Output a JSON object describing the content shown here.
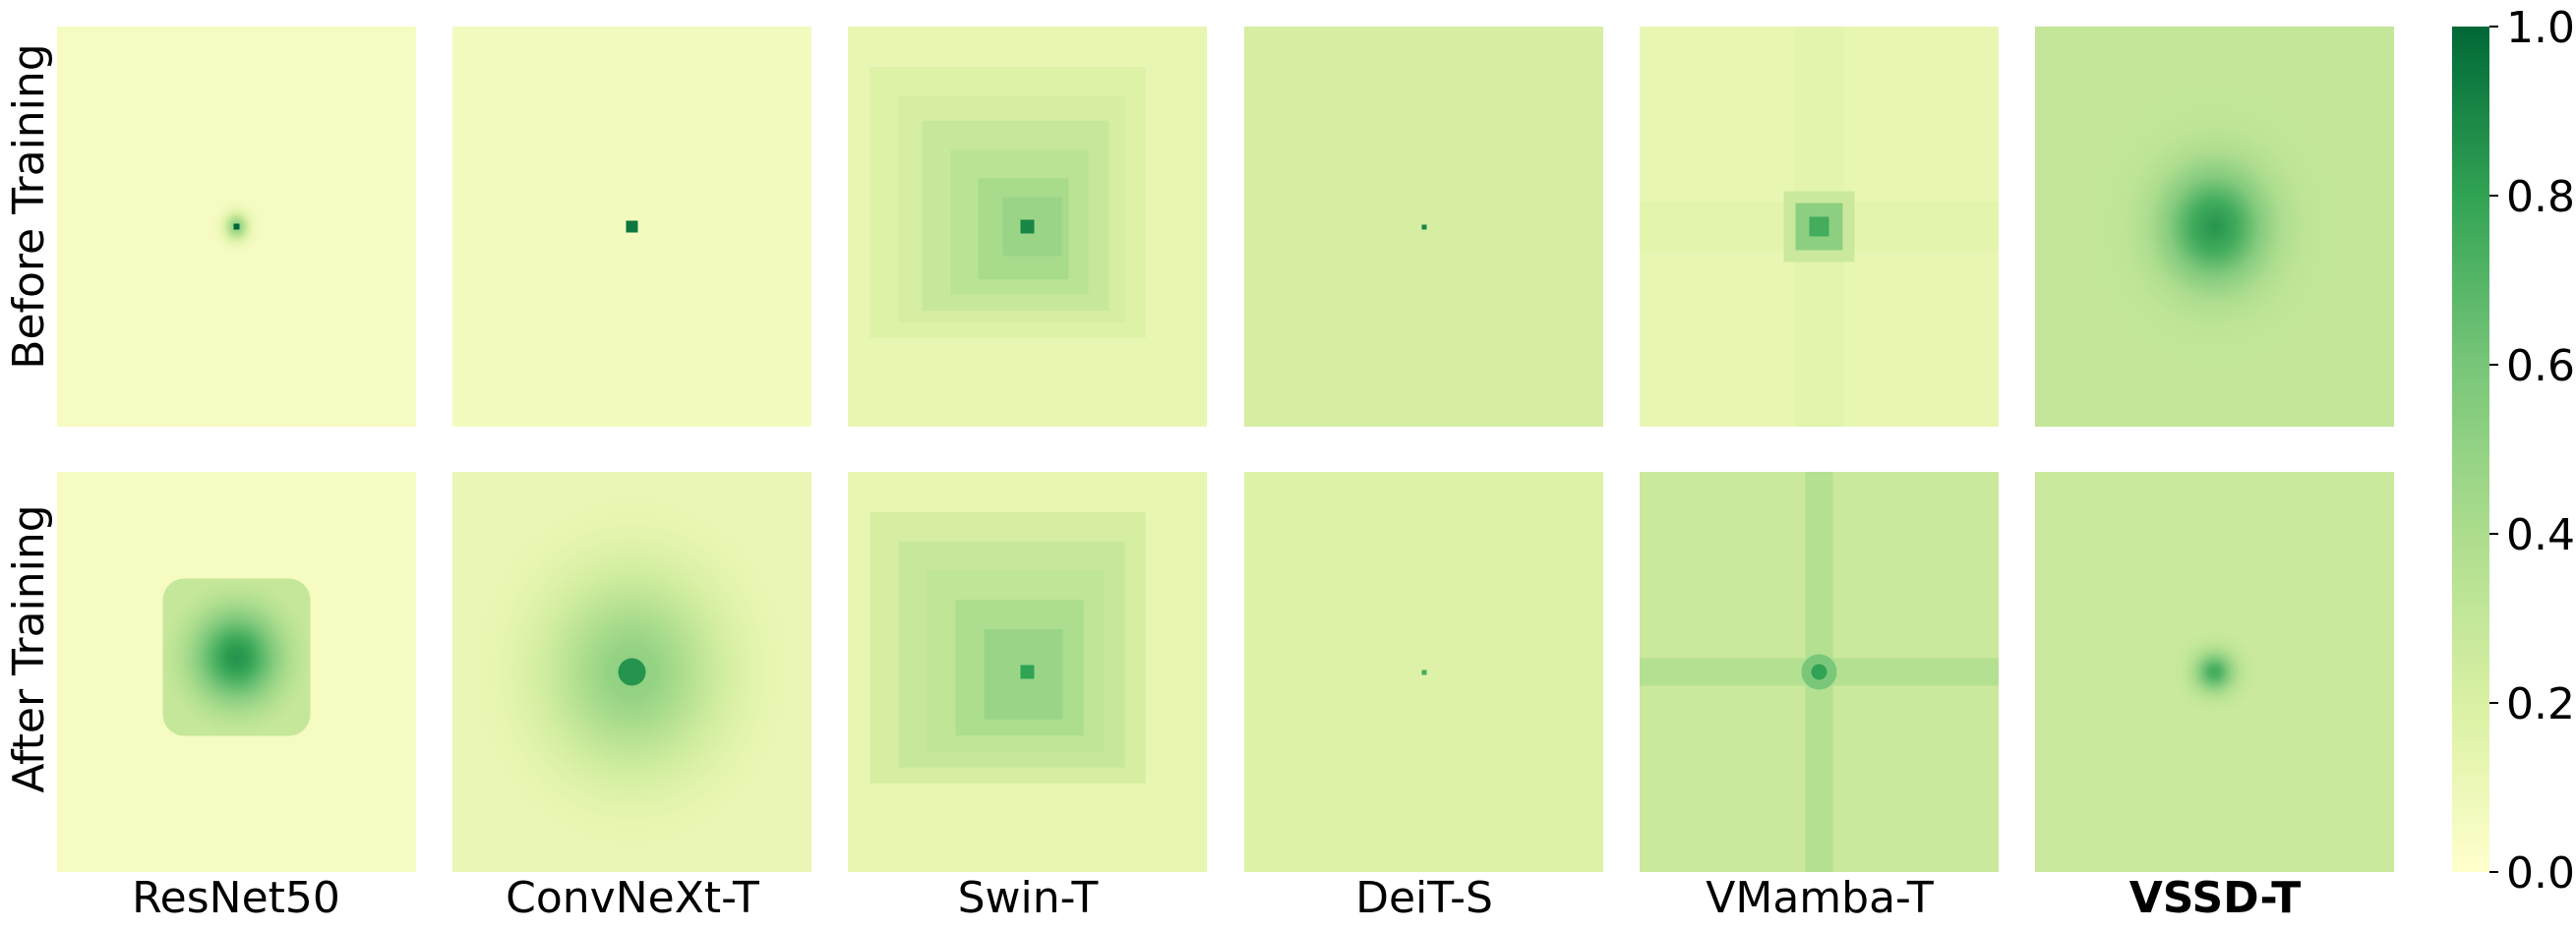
{
  "chart_data": {
    "type": "heatmap",
    "title": "",
    "rows": [
      "Before Training",
      "After Training"
    ],
    "columns": [
      "ResNet50",
      "ConvNeXt-T",
      "Swin-T",
      "DeiT-S",
      "VMamba-T",
      "VSSD-T"
    ],
    "highlighted_column": "VSSD-T",
    "colormap": "YlGn",
    "colormap_stops": [
      "#ffffcc",
      "#d9f0a3",
      "#addd8e",
      "#78c679",
      "#31a354",
      "#006837"
    ],
    "colorbar": {
      "min": 0.0,
      "max": 1.0,
      "ticks": [
        "0.0",
        "0.2",
        "0.4",
        "0.6",
        "0.8",
        "1.0"
      ]
    },
    "cells": [
      [
        {
          "model": "ResNet50",
          "stage": "Before Training",
          "background": 0.05,
          "peak": 1.0,
          "spread": 0.03,
          "pattern": "point"
        },
        {
          "model": "ConvNeXt-T",
          "stage": "Before Training",
          "background": 0.07,
          "peak": 0.95,
          "spread": 0.02,
          "pattern": "small-square"
        },
        {
          "model": "Swin-T",
          "stage": "Before Training",
          "background": 0.12,
          "peak": 0.9,
          "spread": 0.35,
          "pattern": "window-blocks"
        },
        {
          "model": "DeiT-S",
          "stage": "Before Training",
          "background": 0.22,
          "peak": 0.9,
          "spread": 0.01,
          "pattern": "point-uniform"
        },
        {
          "model": "VMamba-T",
          "stage": "Before Training",
          "background": 0.12,
          "peak": 0.75,
          "spread": 0.08,
          "pattern": "cross-square"
        },
        {
          "model": "VSSD-T",
          "stage": "Before Training",
          "background": 0.3,
          "peak": 0.85,
          "spread": 0.3,
          "pattern": "gaussian"
        }
      ],
      [
        {
          "model": "ResNet50",
          "stage": "After Training",
          "background": 0.05,
          "peak": 0.85,
          "spread": 0.3,
          "pattern": "rounded-rect"
        },
        {
          "model": "ConvNeXt-T",
          "stage": "After Training",
          "background": 0.1,
          "peak": 0.85,
          "spread": 0.6,
          "pattern": "broad-gaussian"
        },
        {
          "model": "Swin-T",
          "stage": "After Training",
          "background": 0.12,
          "peak": 0.8,
          "spread": 0.45,
          "pattern": "window-blocks"
        },
        {
          "model": "DeiT-S",
          "stage": "After Training",
          "background": 0.18,
          "peak": 0.75,
          "spread": 0.01,
          "pattern": "point-uniform"
        },
        {
          "model": "VMamba-T",
          "stage": "After Training",
          "background": 0.27,
          "peak": 0.8,
          "spread": 0.06,
          "pattern": "cross"
        },
        {
          "model": "VSSD-T",
          "stage": "After Training",
          "background": 0.27,
          "peak": 0.75,
          "spread": 0.08,
          "pattern": "blob"
        }
      ]
    ]
  }
}
